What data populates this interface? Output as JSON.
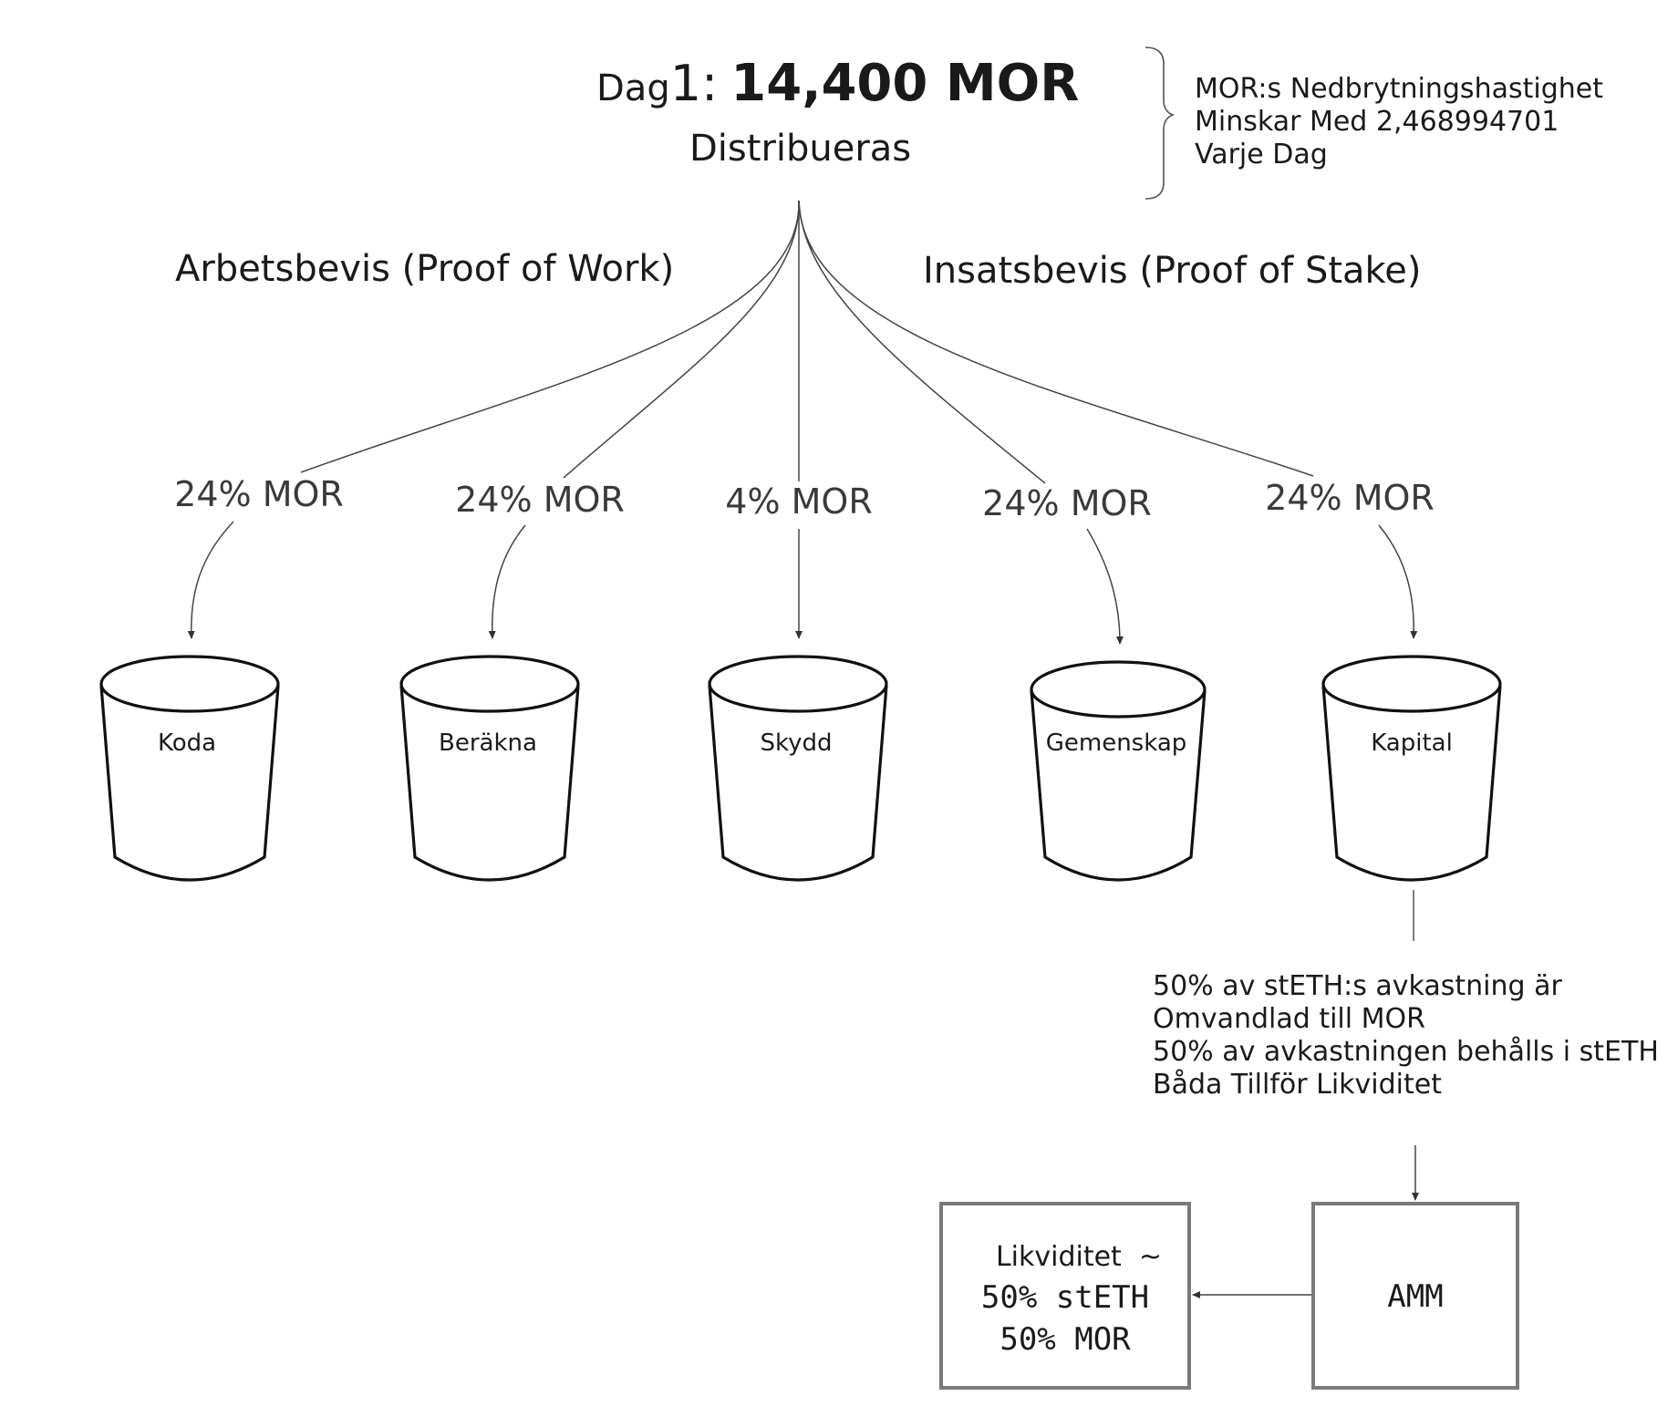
{
  "header": {
    "day_prefix": "Dag",
    "day_number": "1:",
    "amount": "14,400 MOR",
    "subtitle": "Distribueras",
    "note": "MOR:s Nedbrytningshastighet\nMinskar Med 2,468994701\nVarje Dag"
  },
  "sections": {
    "work": "Arbetsbevis (Proof of Work)",
    "stake": "Insatsbevis (Proof of Stake)"
  },
  "buckets": [
    {
      "label": "Koda",
      "share": "24% MOR"
    },
    {
      "label": "Beräkna",
      "share": "24% MOR"
    },
    {
      "label": "Skydd",
      "share": "4% MOR"
    },
    {
      "label": "Gemenskap",
      "share": "24% MOR"
    },
    {
      "label": "Kapital",
      "share": "24% MOR"
    }
  ],
  "capital_note": "50% av stETH:s avkastning är\nOmvandlad till MOR\n50% av avkastningen behålls i stETH\nBåda Tillför Likviditet",
  "amm_box": {
    "label": "AMM"
  },
  "liquidity_box": {
    "line1": "Likviditet  ~",
    "line2": "50% stETH",
    "line3": "50% MOR"
  },
  "colors": {
    "line": "#333333",
    "bucket_stroke": "#111111",
    "box_stroke": "#7a7a7a"
  }
}
